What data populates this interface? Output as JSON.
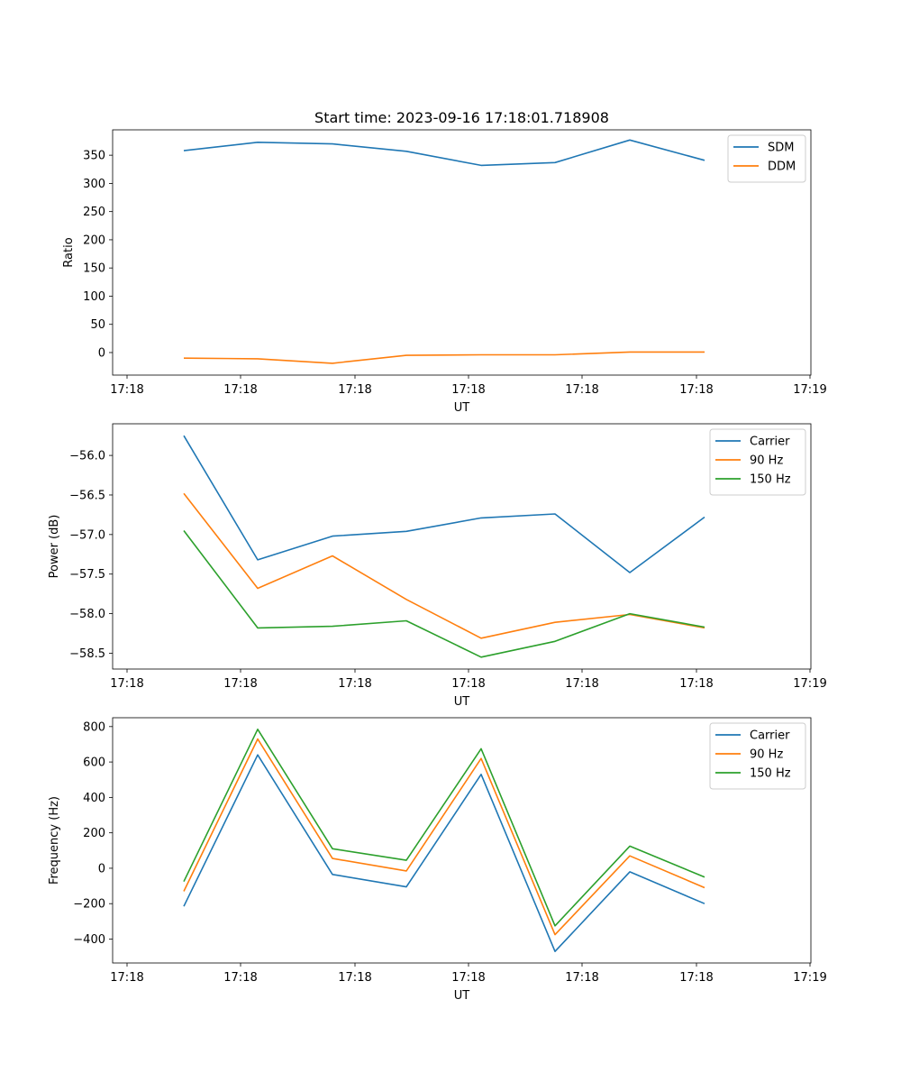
{
  "figure": {
    "title": "Start time: 2023-09-16 17:18:01.718908"
  },
  "chart_data": [
    {
      "type": "line",
      "xlabel": "UT",
      "ylabel": "Ratio",
      "x_ticks": [
        "17:18",
        "17:18",
        "17:18",
        "17:18",
        "17:18",
        "17:18",
        "17:19"
      ],
      "y_ticks": [
        0,
        50,
        100,
        150,
        200,
        250,
        300,
        350
      ],
      "ylim": [
        -40,
        395
      ],
      "legend_position": "top-right",
      "series": [
        {
          "name": "SDM",
          "color": "#1f77b4",
          "values": [
            358,
            373,
            370,
            357,
            332,
            337,
            377,
            341
          ]
        },
        {
          "name": "DDM",
          "color": "#ff7f0e",
          "values": [
            -10,
            -11,
            -19,
            -5,
            -4,
            -4,
            1,
            1
          ]
        }
      ]
    },
    {
      "type": "line",
      "xlabel": "UT",
      "ylabel": "Power (dB)",
      "x_ticks": [
        "17:18",
        "17:18",
        "17:18",
        "17:18",
        "17:18",
        "17:18",
        "17:19"
      ],
      "y_ticks": [
        -58.5,
        -58.0,
        -57.5,
        -57.0,
        -56.5,
        -56.0
      ],
      "ylim": [
        -58.7,
        -55.6
      ],
      "legend_position": "top-right",
      "series": [
        {
          "name": "Carrier",
          "color": "#1f77b4",
          "values": [
            -55.75,
            -57.32,
            -57.02,
            -56.96,
            -56.79,
            -56.74,
            -57.48,
            -56.78
          ]
        },
        {
          "name": "90 Hz",
          "color": "#ff7f0e",
          "values": [
            -56.48,
            -57.68,
            -57.27,
            -57.82,
            -58.31,
            -58.11,
            -58.01,
            -58.18
          ]
        },
        {
          "name": "150 Hz",
          "color": "#2ca02c",
          "values": [
            -56.95,
            -58.18,
            -58.16,
            -58.09,
            -58.55,
            -58.35,
            -58.0,
            -58.17
          ]
        }
      ]
    },
    {
      "type": "line",
      "xlabel": "UT",
      "ylabel": "Frequency (Hz)",
      "x_ticks": [
        "17:18",
        "17:18",
        "17:18",
        "17:18",
        "17:18",
        "17:18",
        "17:19"
      ],
      "y_ticks": [
        -400,
        -200,
        0,
        200,
        400,
        600,
        800
      ],
      "ylim": [
        -535,
        850
      ],
      "legend_position": "top-right",
      "series": [
        {
          "name": "Carrier",
          "color": "#1f77b4",
          "values": [
            -215,
            640,
            -35,
            -105,
            530,
            -470,
            -20,
            -200
          ]
        },
        {
          "name": "90 Hz",
          "color": "#ff7f0e",
          "values": [
            -130,
            730,
            55,
            -15,
            620,
            -375,
            70,
            -110
          ]
        },
        {
          "name": "150 Hz",
          "color": "#2ca02c",
          "values": [
            -75,
            785,
            110,
            45,
            675,
            -325,
            125,
            -50
          ]
        }
      ]
    }
  ]
}
